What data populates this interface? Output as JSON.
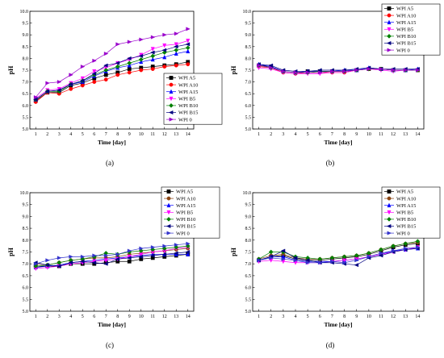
{
  "chart_data": [
    {
      "type": "line",
      "panel_label": "(a)",
      "xlabel": "Time [day]",
      "ylabel": "pH",
      "ylim": [
        5.0,
        10.0
      ],
      "y_ticks": [
        "5.0",
        "5.5",
        "6.0",
        "6.5",
        "7.0",
        "7.5",
        "8.0",
        "8.5",
        "9.0",
        "9.5",
        "10.0"
      ],
      "x": [
        1,
        2,
        3,
        4,
        5,
        6,
        7,
        8,
        9,
        10,
        11,
        12,
        13,
        14
      ],
      "legend_position": "center-right",
      "series": [
        {
          "name": "WPI A5",
          "marker": "square",
          "color": "#000000",
          "values": [
            6.2,
            6.55,
            6.55,
            6.85,
            6.95,
            7.15,
            7.3,
            7.4,
            7.55,
            7.6,
            7.65,
            7.7,
            7.75,
            7.85
          ]
        },
        {
          "name": "WPI A10",
          "marker": "circle",
          "color": "#ff0000",
          "values": [
            6.15,
            6.55,
            6.5,
            6.7,
            6.85,
            7.0,
            7.1,
            7.3,
            7.4,
            7.5,
            7.55,
            7.65,
            7.7,
            7.75
          ]
        },
        {
          "name": "WPI A15",
          "marker": "triangle-up",
          "color": "#0000ff",
          "values": [
            6.25,
            6.6,
            6.65,
            6.9,
            7.0,
            7.25,
            7.45,
            7.6,
            7.7,
            7.85,
            7.95,
            8.05,
            8.2,
            8.3
          ]
        },
        {
          "name": "WPI B5",
          "marker": "triangle-down",
          "color": "#ff00ff",
          "values": [
            6.3,
            6.65,
            6.7,
            6.95,
            7.15,
            7.45,
            7.6,
            7.8,
            7.95,
            8.15,
            8.4,
            8.55,
            8.6,
            8.75
          ]
        },
        {
          "name": "WPI B10",
          "marker": "diamond",
          "color": "#008000",
          "values": [
            6.25,
            6.6,
            6.6,
            6.9,
            7.05,
            7.3,
            7.5,
            7.65,
            7.8,
            7.95,
            8.1,
            8.25,
            8.35,
            8.45
          ]
        },
        {
          "name": "WPI B15",
          "marker": "triangle-left",
          "color": "#000080",
          "values": [
            6.25,
            6.6,
            6.65,
            6.9,
            7.05,
            7.35,
            7.7,
            7.8,
            8.0,
            8.1,
            8.25,
            8.35,
            8.5,
            8.6
          ]
        },
        {
          "name": "WPI 0",
          "marker": "triangle-right",
          "color": "#9900cc",
          "values": [
            6.35,
            6.95,
            7.0,
            7.3,
            7.65,
            7.9,
            8.2,
            8.6,
            8.7,
            8.8,
            8.9,
            9.0,
            9.05,
            9.25
          ]
        }
      ]
    },
    {
      "type": "line",
      "panel_label": "(b)",
      "xlabel": "Time [day]",
      "ylabel": "pH",
      "ylim": [
        5.0,
        10.0
      ],
      "y_ticks": [
        "5.0",
        "5.5",
        "6.0",
        "6.5",
        "7.0",
        "7.5",
        "8.0",
        "8.5",
        "9.0",
        "9.5",
        "10.0"
      ],
      "x": [
        1,
        2,
        3,
        4,
        5,
        6,
        7,
        8,
        9,
        10,
        11,
        12,
        13,
        14
      ],
      "legend_position": "top-right",
      "series": [
        {
          "name": "WPI A5",
          "marker": "square",
          "color": "#000000",
          "values": [
            7.7,
            7.65,
            7.45,
            7.4,
            7.45,
            7.45,
            7.45,
            7.45,
            7.5,
            7.55,
            7.55,
            7.5,
            7.5,
            7.5
          ]
        },
        {
          "name": "WPI A10",
          "marker": "circle",
          "color": "#ff0000",
          "values": [
            7.65,
            7.6,
            7.4,
            7.35,
            7.4,
            7.4,
            7.4,
            7.4,
            7.5,
            7.55,
            7.55,
            7.5,
            7.5,
            7.5
          ]
        },
        {
          "name": "WPI A15",
          "marker": "triangle-up",
          "color": "#0000ff",
          "values": [
            7.75,
            7.65,
            7.45,
            7.4,
            7.45,
            7.45,
            7.45,
            7.5,
            7.5,
            7.6,
            7.55,
            7.5,
            7.5,
            7.55
          ]
        },
        {
          "name": "WPI B5",
          "marker": "triangle-down",
          "color": "#ff00ff",
          "values": [
            7.6,
            7.55,
            7.4,
            7.35,
            7.35,
            7.35,
            7.4,
            7.4,
            7.5,
            7.55,
            7.5,
            7.45,
            7.5,
            7.5
          ]
        },
        {
          "name": "WPI B10",
          "marker": "diamond",
          "color": "#008000",
          "values": [
            7.7,
            7.6,
            7.45,
            7.4,
            7.4,
            7.45,
            7.45,
            7.45,
            7.5,
            7.55,
            7.55,
            7.5,
            7.5,
            7.5
          ]
        },
        {
          "name": "WPI B15",
          "marker": "triangle-left",
          "color": "#000080",
          "values": [
            7.75,
            7.7,
            7.5,
            7.45,
            7.45,
            7.5,
            7.5,
            7.5,
            7.55,
            7.6,
            7.55,
            7.55,
            7.55,
            7.55
          ]
        },
        {
          "name": "WPI 0",
          "marker": "triangle-right",
          "color": "#9900cc",
          "values": [
            7.7,
            7.6,
            7.45,
            7.4,
            7.4,
            7.4,
            7.45,
            7.45,
            7.5,
            7.55,
            7.55,
            7.5,
            7.5,
            7.5
          ]
        }
      ]
    },
    {
      "type": "line",
      "panel_label": "(c)",
      "xlabel": "Time [day]",
      "ylabel": "pH",
      "ylim": [
        5.0,
        10.0
      ],
      "y_ticks": [
        "5.0",
        "5.5",
        "6.0",
        "6.5",
        "7.0",
        "7.5",
        "8.0",
        "8.5",
        "9.0",
        "9.5",
        "10.0"
      ],
      "x": [
        1,
        2,
        3,
        4,
        5,
        6,
        7,
        8,
        9,
        10,
        11,
        12,
        13,
        14
      ],
      "legend_position": "top-right",
      "series": [
        {
          "name": "WPI A5",
          "marker": "square",
          "color": "#000000",
          "values": [
            6.9,
            6.9,
            6.9,
            7.0,
            7.0,
            7.0,
            7.05,
            7.1,
            7.1,
            7.2,
            7.25,
            7.3,
            7.35,
            7.4
          ]
        },
        {
          "name": "WPI A10",
          "marker": "circle",
          "color": "#8b4513",
          "values": [
            7.0,
            6.95,
            7.05,
            7.15,
            7.2,
            7.25,
            7.25,
            7.3,
            7.4,
            7.45,
            7.5,
            7.55,
            7.6,
            7.65
          ]
        },
        {
          "name": "WPI A15",
          "marker": "triangle-up",
          "color": "#0000ff",
          "values": [
            6.85,
            6.9,
            6.95,
            7.05,
            7.1,
            7.15,
            7.2,
            7.25,
            7.3,
            7.35,
            7.4,
            7.4,
            7.4,
            7.4
          ]
        },
        {
          "name": "WPI B5",
          "marker": "triangle-down",
          "color": "#ff00ff",
          "values": [
            6.8,
            6.85,
            6.9,
            7.0,
            7.05,
            7.1,
            7.15,
            7.2,
            7.3,
            7.4,
            7.5,
            7.55,
            7.65,
            7.7
          ]
        },
        {
          "name": "WPI B10",
          "marker": "diamond",
          "color": "#008000",
          "values": [
            6.9,
            6.95,
            7.05,
            7.15,
            7.2,
            7.3,
            7.45,
            7.4,
            7.5,
            7.55,
            7.6,
            7.65,
            7.7,
            7.75
          ]
        },
        {
          "name": "WPI B15",
          "marker": "triangle-left",
          "color": "#000080",
          "values": [
            7.05,
            6.95,
            6.9,
            7.05,
            7.1,
            7.05,
            7.0,
            7.2,
            7.25,
            7.3,
            7.35,
            7.4,
            7.45,
            7.5
          ]
        },
        {
          "name": "WPI 0",
          "marker": "triangle-right",
          "color": "#3333cc",
          "values": [
            7.0,
            7.15,
            7.25,
            7.3,
            7.3,
            7.35,
            7.35,
            7.4,
            7.55,
            7.65,
            7.7,
            7.75,
            7.8,
            7.85
          ]
        }
      ]
    },
    {
      "type": "line",
      "panel_label": "(d)",
      "xlabel": "Time [day]",
      "ylabel": "pH",
      "ylim": [
        5.0,
        10.0
      ],
      "y_ticks": [
        "5.0",
        "5.5",
        "6.0",
        "6.5",
        "7.0",
        "7.5",
        "8.0",
        "8.5",
        "9.0",
        "9.5",
        "10.0"
      ],
      "x": [
        1,
        2,
        3,
        4,
        5,
        6,
        7,
        8,
        9,
        10,
        11,
        12,
        13,
        14
      ],
      "legend_position": "top-right",
      "series": [
        {
          "name": "WPI A5",
          "marker": "square",
          "color": "#000000",
          "values": [
            7.15,
            7.3,
            7.35,
            7.2,
            7.15,
            7.15,
            7.2,
            7.25,
            7.3,
            7.4,
            7.55,
            7.7,
            7.8,
            7.85
          ]
        },
        {
          "name": "WPI A10",
          "marker": "circle",
          "color": "#8b4513",
          "values": [
            7.2,
            7.35,
            7.4,
            7.25,
            7.2,
            7.2,
            7.25,
            7.3,
            7.35,
            7.45,
            7.6,
            7.75,
            7.85,
            7.9
          ]
        },
        {
          "name": "WPI A15",
          "marker": "triangle-up",
          "color": "#0000ff",
          "values": [
            7.15,
            7.3,
            7.3,
            7.15,
            7.1,
            7.1,
            7.1,
            7.15,
            7.2,
            7.3,
            7.4,
            7.55,
            7.6,
            7.65
          ]
        },
        {
          "name": "WPI B5",
          "marker": "triangle-down",
          "color": "#ff00ff",
          "values": [
            7.1,
            7.15,
            7.1,
            7.05,
            7.05,
            7.05,
            7.1,
            7.15,
            7.2,
            7.3,
            7.4,
            7.5,
            7.6,
            7.7
          ]
        },
        {
          "name": "WPI B10",
          "marker": "diamond",
          "color": "#008000",
          "values": [
            7.2,
            7.5,
            7.5,
            7.3,
            7.25,
            7.2,
            7.25,
            7.3,
            7.35,
            7.45,
            7.6,
            7.75,
            7.85,
            7.95
          ]
        },
        {
          "name": "WPI B15",
          "marker": "triangle-left",
          "color": "#000080",
          "values": [
            7.15,
            7.3,
            7.55,
            7.25,
            7.15,
            7.05,
            7.05,
            7.0,
            6.95,
            7.25,
            7.35,
            7.5,
            7.6,
            7.65
          ]
        },
        {
          "name": "WPI 0",
          "marker": "triangle-right",
          "color": "#3333cc",
          "values": [
            7.15,
            7.25,
            7.2,
            7.15,
            7.05,
            7.05,
            7.1,
            7.05,
            7.15,
            7.3,
            7.45,
            7.55,
            7.65,
            7.7
          ]
        }
      ]
    }
  ]
}
